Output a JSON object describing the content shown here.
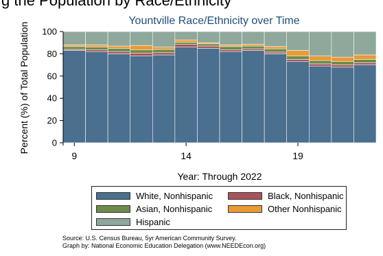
{
  "header_fragment": "g the Population by Race/Ethnicity",
  "chart_data": {
    "type": "bar",
    "stacked": true,
    "title": "Yountville Race/Ethnicity over Time",
    "xlabel": "Year: Through 2022",
    "ylabel": "Percent (%) of Total Population",
    "x": [
      9,
      10,
      11,
      12,
      13,
      14,
      15,
      16,
      17,
      18,
      19,
      20,
      21,
      22
    ],
    "xticks": [
      "9",
      "14",
      "19"
    ],
    "xtick_values": [
      9,
      14,
      19
    ],
    "yticks": [
      "0",
      "20",
      "40",
      "60",
      "80",
      "100"
    ],
    "ylim": [
      0,
      100
    ],
    "grid": true,
    "legend_position": "bottom",
    "series": [
      {
        "name": "White, Nonhispanic",
        "color": "#4a6f8f",
        "values": [
          83,
          82,
          80,
          78,
          79,
          86,
          85,
          82,
          83,
          80,
          73,
          69,
          68,
          70
        ]
      },
      {
        "name": "Black, Nonhispanic",
        "color": "#a8535b",
        "values": [
          1,
          1.5,
          2,
          2.5,
          2,
          2.5,
          2,
          1.5,
          1.5,
          1.5,
          2,
          2,
          2,
          2
        ]
      },
      {
        "name": "Asian, Nonhispanic",
        "color": "#6e8a4d",
        "values": [
          2.5,
          2.5,
          3,
          3,
          3,
          2,
          2,
          3,
          2.5,
          3,
          3,
          3,
          3,
          3
        ]
      },
      {
        "name": "Other Nonhispanic",
        "color": "#e89a35",
        "values": [
          1.5,
          2,
          2,
          4,
          2,
          2,
          1,
          1.5,
          1.5,
          2,
          5,
          4,
          4,
          4
        ]
      },
      {
        "name": "Hispanic",
        "color": "#8fa89b",
        "values": [
          12,
          12,
          13,
          12.5,
          14,
          7.5,
          10,
          12,
          11.5,
          13.5,
          17,
          22,
          23,
          21
        ]
      }
    ],
    "colors": {
      "plot_background": "#eaf1f4",
      "title": "#1f4e79",
      "tick_color": "#000000"
    }
  },
  "source_lines": [
    "Source: U.S. Census Bureau, 5yr American Community Survey.",
    "Graph by: National Economic Education Delegation (www.NEEDEcon.org)"
  ]
}
